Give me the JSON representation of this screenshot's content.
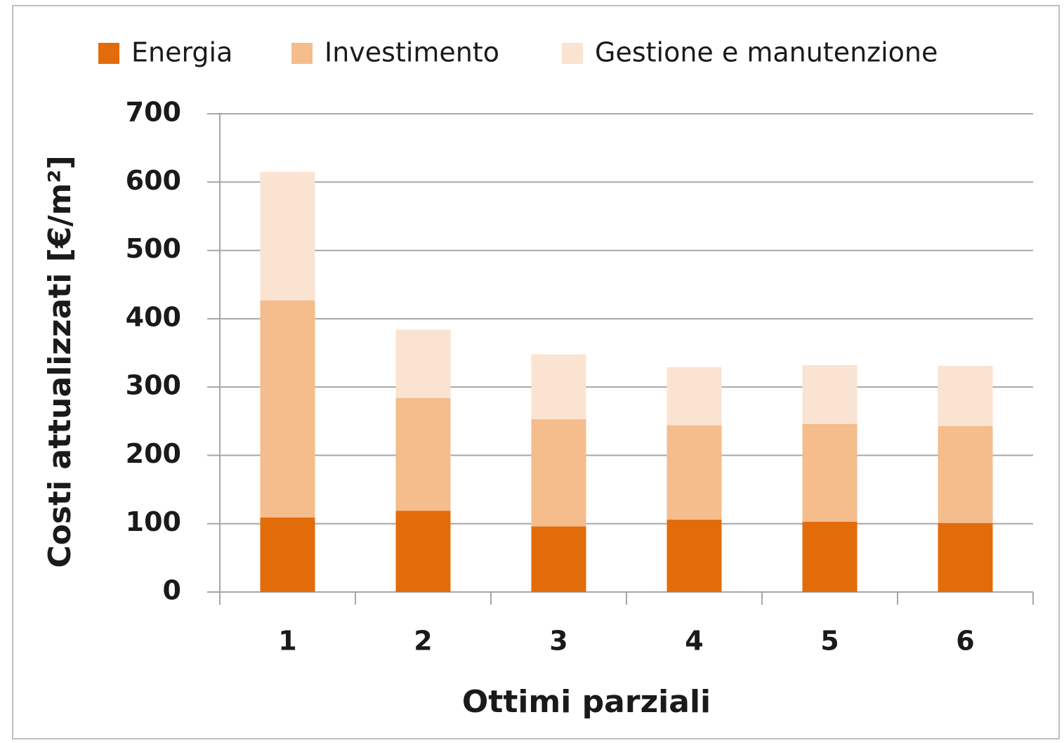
{
  "chart_data": {
    "type": "stacked_bar",
    "x_label": "Ottimi parziali",
    "y_label": "Costi attualizzati [€/m²]",
    "categories": [
      "1",
      "2",
      "3",
      "4",
      "5",
      "6"
    ],
    "series": [
      {
        "name": "Energia",
        "color": "#e36c0a",
        "values": [
          109,
          119,
          96,
          106,
          103,
          101
        ]
      },
      {
        "name": "Investimento",
        "color": "#f5bc8c",
        "values": [
          318,
          165,
          157,
          138,
          143,
          142
        ]
      },
      {
        "name": "Gestione e manutenzione",
        "color": "#fbe3d1",
        "values": [
          188,
          100,
          95,
          85,
          86,
          88
        ]
      }
    ],
    "ylim": [
      0,
      700
    ],
    "yticks": [
      0,
      100,
      200,
      300,
      400,
      500,
      600,
      700
    ],
    "grid": true,
    "legend": "top"
  }
}
